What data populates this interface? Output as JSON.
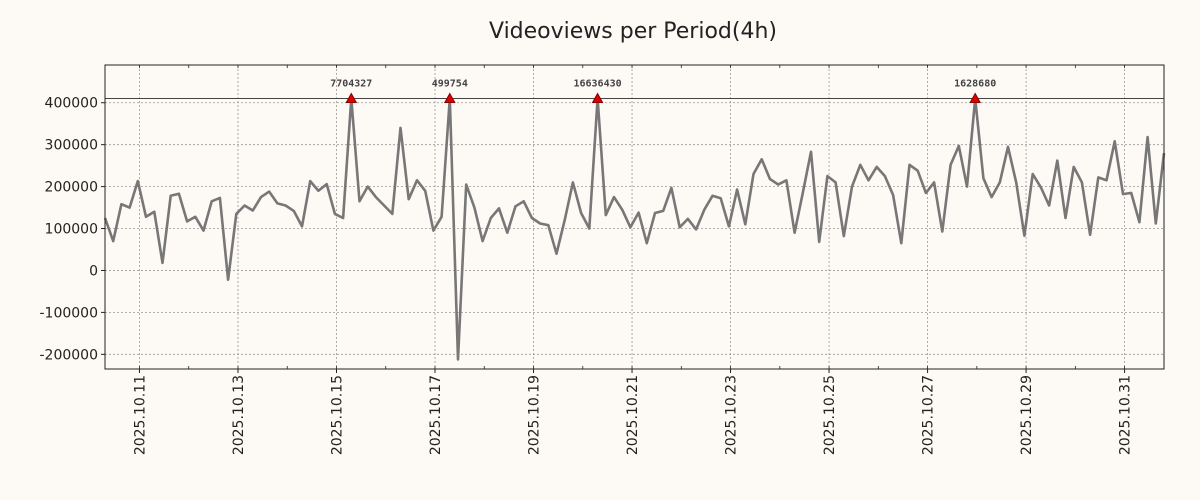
{
  "chart_data": {
    "type": "line",
    "title": "Videoviews per Period(4h)",
    "xlabel": "",
    "ylabel": "",
    "ylim": [
      -235000,
      490000
    ],
    "yticks": [
      -200000,
      -100000,
      0,
      100000,
      200000,
      300000,
      400000
    ],
    "ytick_labels": [
      "-200000",
      "-100000",
      "0",
      "100000",
      "200000",
      "300000",
      "400000"
    ],
    "xlim_days": [
      0,
      21.5
    ],
    "xticks_days": [
      0.7,
      2.7,
      4.7,
      6.7,
      8.7,
      10.7,
      12.7,
      14.7,
      16.7,
      18.7,
      20.7
    ],
    "xtick_labels": [
      "2025.10.11",
      "2025.10.13",
      "2025.10.15",
      "2025.10.17",
      "2025.10.19",
      "2025.10.21",
      "2025.10.23",
      "2025.10.25",
      "2025.10.27",
      "2025.10.29",
      "2025.10.31"
    ],
    "cap_value": 410000,
    "line_color": "#777777",
    "marker_color": "#dd0000",
    "series": [
      {
        "name": "Videoviews",
        "values": [
          125000,
          70000,
          158000,
          150000,
          213000,
          128000,
          140000,
          18000,
          178000,
          183000,
          117000,
          128000,
          95000,
          165000,
          173000,
          -22000,
          135000,
          155000,
          143000,
          175000,
          188000,
          160000,
          155000,
          142000,
          105000,
          213000,
          190000,
          206000,
          135000,
          125000,
          410000,
          165000,
          200000,
          175000,
          155000,
          135000,
          340000,
          170000,
          215000,
          190000,
          95000,
          128000,
          410000,
          -212000,
          205000,
          150000,
          70000,
          125000,
          148000,
          90000,
          153000,
          165000,
          125000,
          112000,
          108000,
          40000,
          120000,
          210000,
          137000,
          100000,
          410000,
          132000,
          175000,
          145000,
          103000,
          138000,
          65000,
          137000,
          142000,
          197000,
          103000,
          123000,
          98000,
          145000,
          178000,
          172000,
          105000,
          193000,
          110000,
          230000,
          265000,
          218000,
          205000,
          215000,
          90000,
          185000,
          283000,
          68000,
          225000,
          210000,
          82000,
          200000,
          252000,
          215000,
          247000,
          225000,
          180000,
          65000,
          252000,
          238000,
          185000,
          210000,
          93000,
          252000,
          297000,
          200000,
          410000,
          220000,
          175000,
          210000,
          295000,
          210000,
          83000,
          230000,
          198000,
          155000,
          262000,
          125000,
          247000,
          210000,
          85000,
          222000,
          215000,
          308000,
          182000,
          185000,
          115000,
          318000,
          112000,
          280000
        ]
      }
    ],
    "peaks": [
      {
        "index": 30,
        "value": 410000,
        "label": "7704327"
      },
      {
        "index": 42,
        "value": 410000,
        "label": "499754"
      },
      {
        "index": 60,
        "value": 410000,
        "label": "16636430"
      },
      {
        "index": 106,
        "value": 410000,
        "label": "1628680"
      }
    ]
  }
}
